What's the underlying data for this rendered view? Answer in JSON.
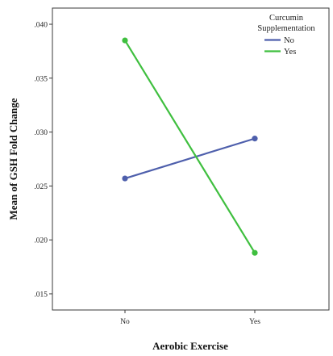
{
  "chart_data": {
    "type": "line",
    "xlabel": "Aerobic Exercise",
    "ylabel": "Mean of GSH Fold Change",
    "categories": [
      "No",
      "Yes"
    ],
    "ylim": [
      0.0135,
      0.0415
    ],
    "yticks": [
      0.015,
      0.02,
      0.025,
      0.03,
      0.035,
      0.04
    ],
    "ytick_labels": [
      ".015",
      ".020",
      ".025",
      ".030",
      ".035",
      ".040"
    ],
    "legend": {
      "title_line1": "Curcumin",
      "title_line2": "Supplementation",
      "position": "top-right"
    },
    "series": [
      {
        "name": "No",
        "values": [
          0.0257,
          0.0294
        ],
        "color": "#4e5fac"
      },
      {
        "name": "Yes",
        "values": [
          0.0385,
          0.0188
        ],
        "color": "#3fbf3f"
      }
    ]
  }
}
